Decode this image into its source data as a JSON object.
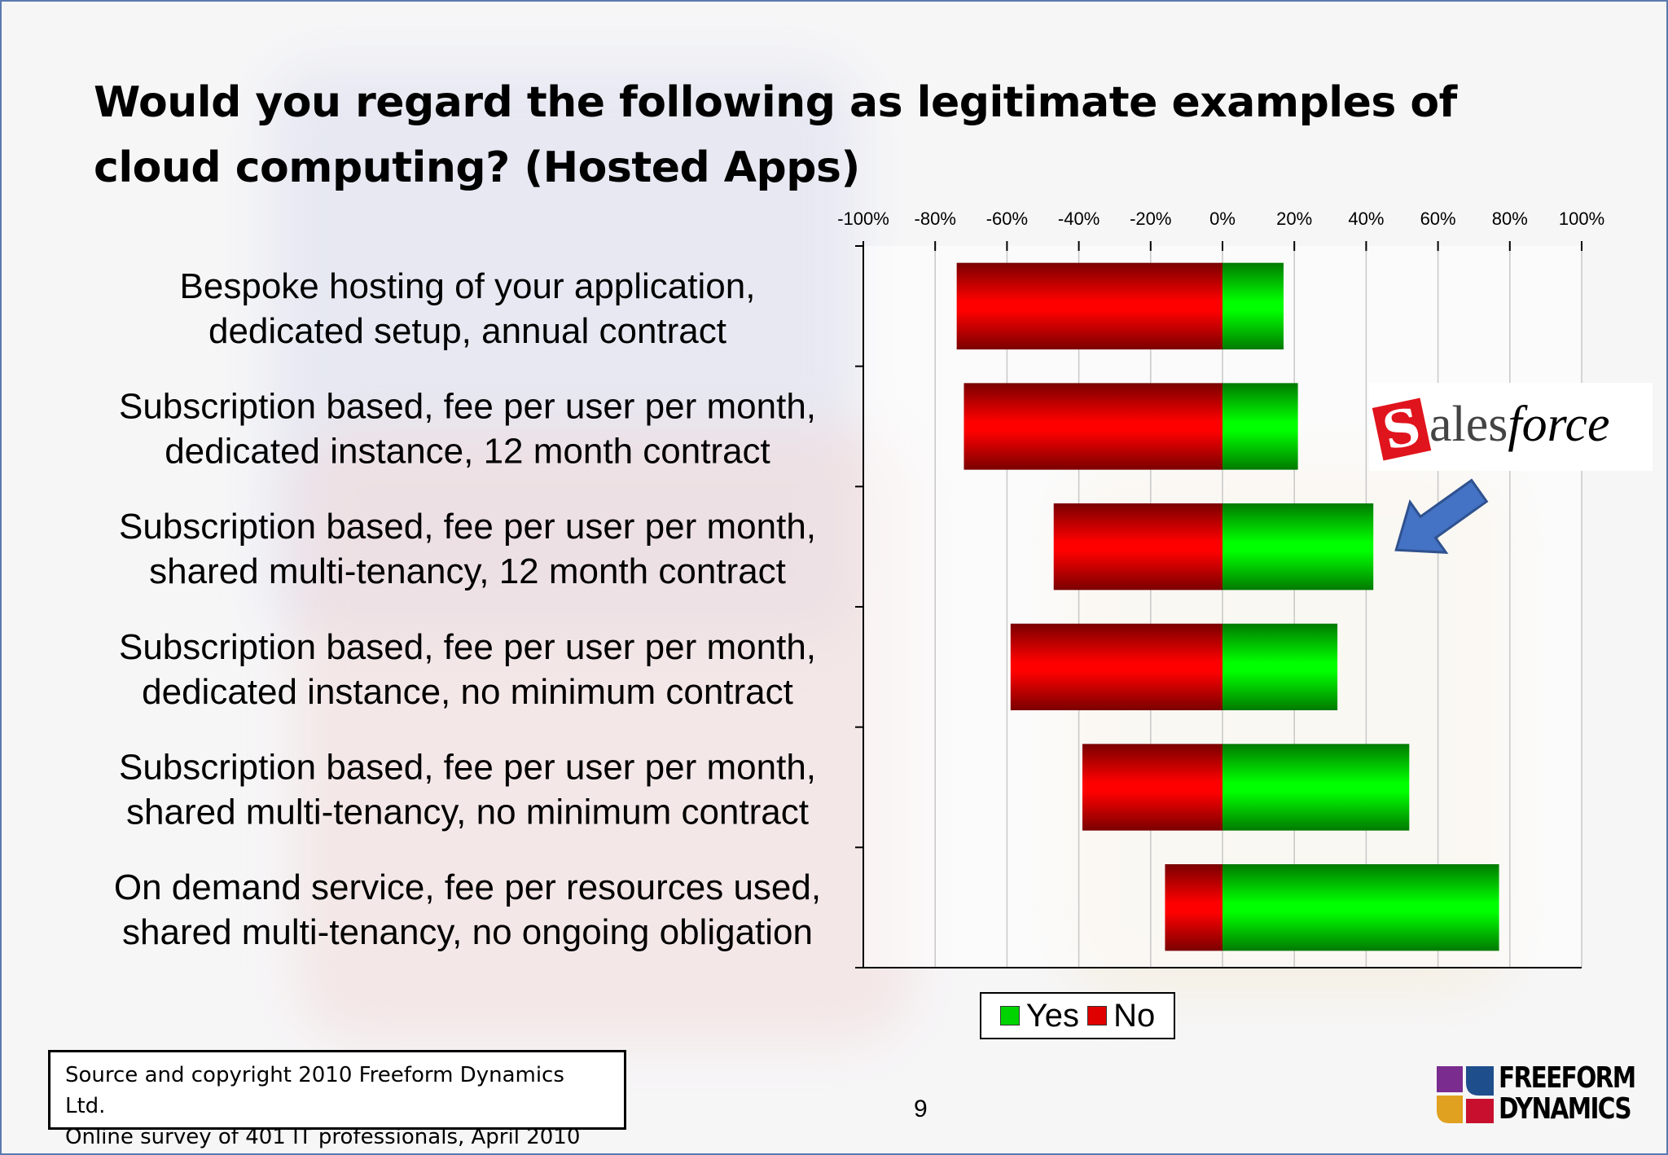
{
  "title": "Would you regard the following as legitimate examples of cloud computing? (Hosted Apps)",
  "chart_data": {
    "type": "bar",
    "orientation": "horizontal-diverging",
    "stacked": true,
    "x_ticks": [
      "-100%",
      "-80%",
      "-60%",
      "-40%",
      "-20%",
      "0%",
      "20%",
      "40%",
      "60%",
      "80%",
      "100%"
    ],
    "xlim": [
      -100,
      100
    ],
    "categories": [
      [
        "Bespoke hosting of your application,",
        "dedicated setup, annual contract"
      ],
      [
        "Subscription based, fee per user per month,",
        "dedicated instance, 12 month contract"
      ],
      [
        "Subscription based, fee per user per month,",
        "shared multi-tenancy, 12 month contract"
      ],
      [
        "Subscription based, fee per user per month,",
        "dedicated instance, no minimum contract"
      ],
      [
        "Subscription based, fee per user per month,",
        "shared multi-tenancy, no minimum contract"
      ],
      [
        "On demand service, fee per resources used,",
        "shared multi-tenancy, no ongoing obligation"
      ]
    ],
    "series": [
      {
        "name": "Yes",
        "color": "#00e600",
        "values": [
          17,
          21,
          42,
          32,
          52,
          77
        ]
      },
      {
        "name": "No",
        "color": "#e60000",
        "values": [
          -74,
          -72,
          -47,
          -59,
          -39,
          -16
        ]
      }
    ],
    "legend_position": "bottom",
    "grid": true
  },
  "legend": {
    "yes_label": "Yes",
    "no_label": "No"
  },
  "callout": {
    "logo_text_s": "S",
    "logo_text_ales": "ales",
    "logo_text_force": "force",
    "arrow_target_category_index": 2
  },
  "source": {
    "line1": "Source and copyright 2010 Freeform Dynamics Ltd.",
    "line2": "Online survey of 401 IT professionals, April 2010"
  },
  "page_number": "9",
  "brand": {
    "line1": "FREEFORM",
    "line2": "DYNAMICS"
  }
}
